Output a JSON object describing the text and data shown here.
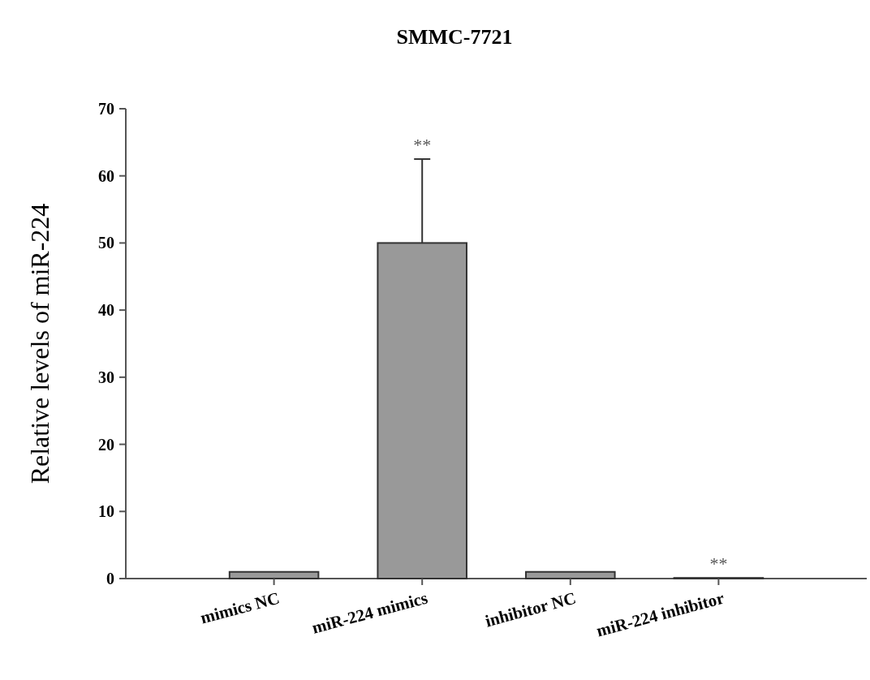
{
  "chart_data": {
    "type": "bar",
    "title": "SMMC-7721",
    "ylabel": "Relative levels of miR-224",
    "categories": [
      "mimics NC",
      "miR-224 mimics",
      "inhibitor NC",
      "miR-224 inhibitor"
    ],
    "values": [
      1,
      50,
      1,
      0.1
    ],
    "color": "#999999",
    "errors": [
      null,
      [
        50,
        62.5
      ],
      null,
      null
    ],
    "ylim": [
      0,
      70
    ],
    "yticks": [
      0,
      10,
      20,
      30,
      40,
      50,
      60,
      70
    ],
    "grid": false,
    "annotations": [
      {
        "text": "**",
        "x": "miR-224 mimics",
        "y": 62.5
      },
      {
        "text": "**",
        "x": "miR-224 inhibitor",
        "y": 0.1
      }
    ]
  }
}
